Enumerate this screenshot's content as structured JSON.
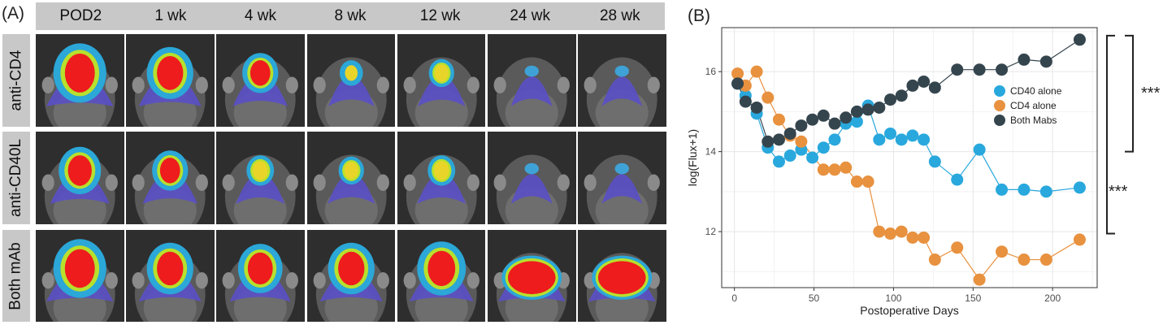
{
  "panel_a": {
    "label": "(A)",
    "columns": [
      "POD2",
      "1 wk",
      "4 wk",
      "8 wk",
      "12 wk",
      "24 wk",
      "28 wk"
    ],
    "rows": [
      "anti-CD4",
      "anti-CD40L",
      "Both mAb"
    ],
    "signal_levels": [
      [
        1.0,
        0.85,
        0.6,
        0.3,
        0.35,
        0.15,
        0.12
      ],
      [
        0.75,
        0.6,
        0.4,
        0.35,
        0.4,
        0.15,
        0.12
      ],
      [
        1.0,
        0.85,
        0.8,
        0.85,
        0.9,
        1.0,
        1.0
      ]
    ]
  },
  "panel_b": {
    "label": "(B)",
    "significance_top": "***",
    "significance_bottom": "***"
  },
  "chart_data": {
    "type": "scatter",
    "xlabel": "Postoperative Days",
    "ylabel": "log(Flux+1)",
    "xlim": [
      -8,
      228
    ],
    "ylim": [
      10.6,
      17.1
    ],
    "xticks": [
      0,
      50,
      100,
      150,
      200
    ],
    "yticks": [
      12,
      14,
      16
    ],
    "grid": true,
    "legend_position": "right",
    "series": [
      {
        "name": "CD40 alone",
        "color": "#29a8dd",
        "x": [
          2,
          7,
          14,
          21,
          28,
          35,
          42,
          49,
          56,
          63,
          70,
          77,
          84,
          91,
          98,
          105,
          112,
          119,
          126,
          140,
          154,
          168,
          182,
          196,
          217
        ],
        "y": [
          15.7,
          15.4,
          14.95,
          14.1,
          13.75,
          13.9,
          14.05,
          13.85,
          14.1,
          14.3,
          14.7,
          14.75,
          15.15,
          14.3,
          14.45,
          14.3,
          14.4,
          14.3,
          13.75,
          13.3,
          14.05,
          13.05,
          13.05,
          13.0,
          13.1
        ]
      },
      {
        "name": "CD4 alone",
        "color": "#e8913f",
        "x": [
          2,
          7,
          14,
          21,
          28,
          35,
          42,
          56,
          63,
          70,
          77,
          84,
          91,
          98,
          105,
          112,
          119,
          126,
          140,
          154,
          168,
          182,
          196,
          217
        ],
        "y": [
          15.95,
          15.65,
          16.0,
          15.35,
          14.8,
          14.4,
          14.25,
          13.55,
          13.55,
          13.6,
          13.25,
          13.25,
          12.0,
          11.95,
          12.0,
          11.85,
          11.85,
          11.3,
          11.6,
          10.8,
          11.5,
          11.3,
          11.3,
          11.8
        ]
      },
      {
        "name": "Both Mabs",
        "color": "#35454e",
        "x": [
          2,
          7,
          14,
          21,
          28,
          35,
          42,
          49,
          56,
          63,
          70,
          77,
          84,
          91,
          98,
          105,
          112,
          119,
          126,
          140,
          154,
          168,
          182,
          196,
          217
        ],
        "y": [
          15.7,
          15.25,
          15.1,
          14.25,
          14.3,
          14.45,
          14.65,
          14.8,
          14.9,
          14.7,
          14.85,
          15.0,
          15.05,
          15.1,
          15.3,
          15.4,
          15.65,
          15.75,
          15.6,
          16.05,
          16.05,
          16.05,
          16.3,
          16.25,
          16.8
        ]
      }
    ]
  }
}
